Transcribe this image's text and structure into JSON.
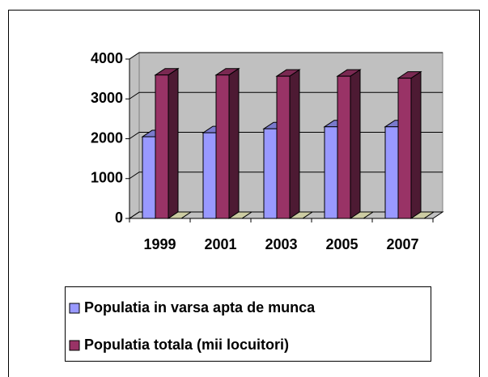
{
  "chart_data": {
    "type": "bar3d",
    "categories": [
      "1999",
      "2001",
      "2003",
      "2005",
      "2007"
    ],
    "series": [
      {
        "name": "Populatia in varsa apta de munca",
        "color": "#9999ff",
        "values": [
          2050,
          2150,
          2250,
          2300,
          2300
        ]
      },
      {
        "name": "Populatia totala (mii locuitori)",
        "color": "#993366",
        "values": [
          3600,
          3600,
          3570,
          3570,
          3520
        ]
      },
      {
        "color": "#ffffcc",
        "values": [
          0,
          0,
          0,
          0,
          0
        ]
      }
    ],
    "ylim": [
      0,
      4000
    ],
    "yticks": [
      0,
      1000,
      2000,
      3000,
      4000
    ],
    "grid": true
  }
}
